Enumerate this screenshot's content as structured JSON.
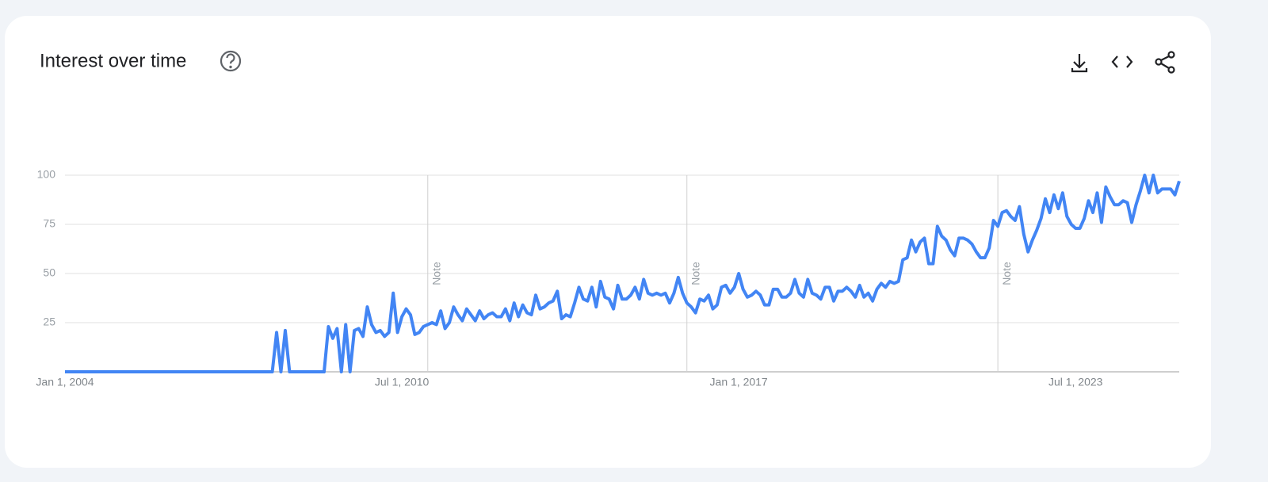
{
  "chart_data": {
    "type": "line",
    "title": "Interest over time",
    "series": [
      {
        "color": "#4285f4",
        "values": [
          0,
          0,
          0,
          0,
          0,
          0,
          0,
          0,
          0,
          0,
          0,
          0,
          0,
          0,
          0,
          0,
          0,
          0,
          0,
          0,
          0,
          0,
          0,
          0,
          0,
          0,
          0,
          0,
          0,
          0,
          0,
          0,
          0,
          0,
          0,
          0,
          0,
          0,
          0,
          0,
          0,
          0,
          0,
          0,
          0,
          0,
          0,
          0,
          0,
          20,
          0,
          21,
          0,
          0,
          0,
          0,
          0,
          0,
          0,
          0,
          0,
          23,
          17,
          22,
          0,
          24,
          0,
          21,
          22,
          18,
          33,
          24,
          20,
          21,
          18,
          20,
          40,
          20,
          28,
          32,
          29,
          19,
          20,
          23,
          24,
          25,
          24,
          31,
          22,
          25,
          33,
          29,
          26,
          32,
          29,
          26,
          31,
          27,
          29,
          30,
          28,
          28,
          32,
          26,
          35,
          28,
          34,
          30,
          29,
          39,
          32,
          33,
          35,
          36,
          41,
          27,
          29,
          28,
          35,
          43,
          37,
          36,
          43,
          33,
          46,
          38,
          37,
          32,
          44,
          37,
          37,
          39,
          43,
          37,
          47,
          40,
          39,
          40,
          39,
          40,
          35,
          40,
          48,
          40,
          35,
          33,
          30,
          37,
          36,
          39,
          32,
          34,
          43,
          44,
          40,
          43,
          50,
          42,
          38,
          39,
          41,
          39,
          34,
          34,
          42,
          42,
          38,
          38,
          40,
          47,
          40,
          38,
          47,
          40,
          39,
          37,
          43,
          43,
          36,
          41,
          41,
          43,
          41,
          38,
          44,
          38,
          40,
          36,
          42,
          45,
          43,
          46,
          45,
          46,
          57,
          58,
          67,
          61,
          66,
          68,
          55,
          55,
          74,
          69,
          67,
          62,
          59,
          68,
          68,
          67,
          65,
          61,
          58,
          58,
          63,
          77,
          74,
          81,
          82,
          79,
          77,
          84,
          70,
          61,
          67,
          72,
          78,
          88,
          81,
          90,
          83,
          91,
          79,
          75,
          73,
          73,
          78,
          87,
          81,
          91,
          76,
          94,
          89,
          85,
          85,
          87,
          86,
          76,
          85,
          92,
          100,
          91,
          100,
          91,
          93,
          93,
          93,
          90,
          97
        ]
      }
    ],
    "xlim": [
      0,
      258
    ],
    "xticks": [
      {
        "value": 0,
        "label": "Jan 1, 2004"
      },
      {
        "value": 78,
        "label": "Jul 1, 2010"
      },
      {
        "value": 156,
        "label": "Jan 1, 2017"
      },
      {
        "value": 234,
        "label": "Jul 1, 2023"
      }
    ],
    "ylim": [
      0,
      100
    ],
    "yticks": [
      25,
      50,
      75,
      100
    ],
    "grid": true,
    "notes": [
      {
        "x": 84,
        "label": "Note"
      },
      {
        "x": 144,
        "label": "Note"
      },
      {
        "x": 216,
        "label": "Note"
      }
    ]
  }
}
